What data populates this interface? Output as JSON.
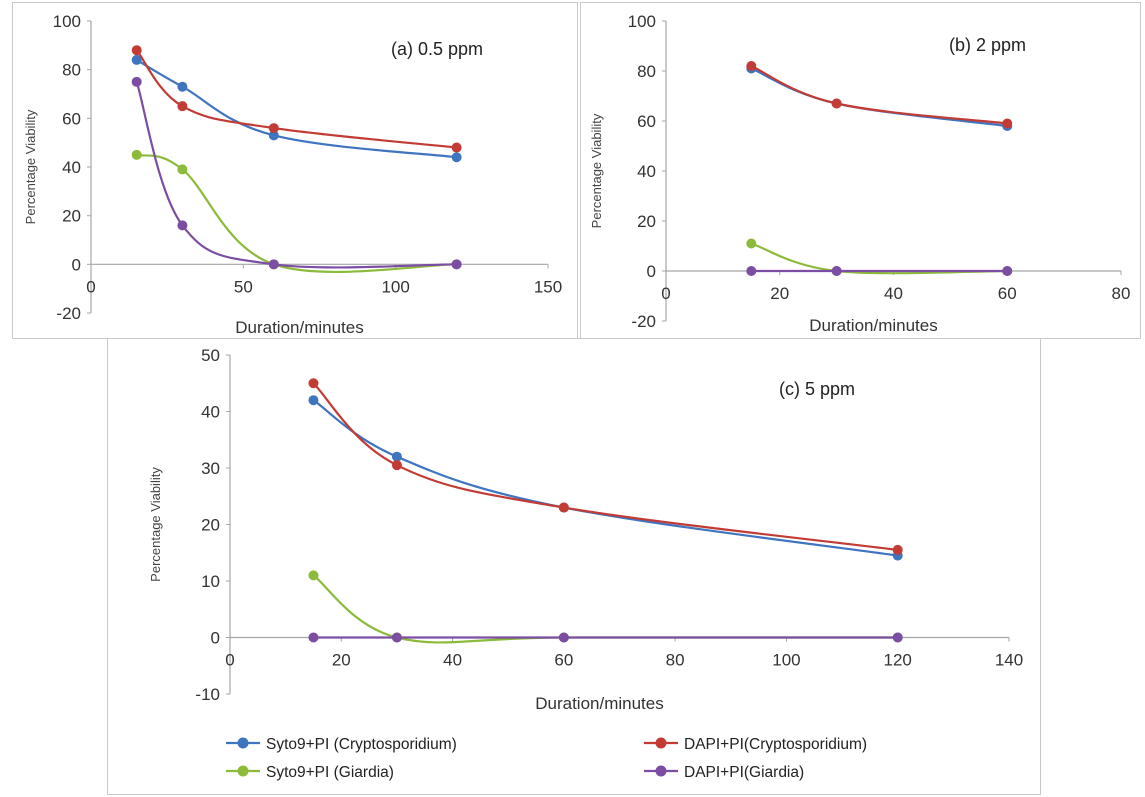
{
  "colors": {
    "syto9_crypto": "#3f74c0",
    "dapi_crypto": "#c23b35",
    "syto9_giardia": "#8cba3a",
    "dapi_giardia": "#7b4da3",
    "axis": "#a6a6a6"
  },
  "legend": [
    {
      "label": "Syto9+PI (Cryptosporidium)",
      "color_key": "syto9_crypto"
    },
    {
      "label": "DAPI+PI(Cryptosporidium)",
      "color_key": "dapi_crypto"
    },
    {
      "label": "Syto9+PI (Giardia)",
      "color_key": "syto9_giardia"
    },
    {
      "label": "DAPI+PI(Giardia)",
      "color_key": "dapi_giardia"
    }
  ],
  "chart_data": [
    {
      "type": "line",
      "title": "(a) 0.5 ppm",
      "xlabel": "Duration/minutes",
      "ylabel": "Percentage Viability",
      "xlim": [
        0,
        150
      ],
      "ylim": [
        -20,
        100
      ],
      "xticks": [
        0,
        50,
        100,
        150
      ],
      "yticks": [
        -20,
        0,
        20,
        40,
        60,
        80,
        100
      ],
      "grid": false,
      "x": [
        15,
        30,
        60,
        120
      ],
      "series": [
        {
          "name": "Syto9+PI (Cryptosporidium)",
          "values": [
            84,
            73,
            53,
            44
          ]
        },
        {
          "name": "DAPI+PI(Cryptosporidium)",
          "values": [
            88,
            65,
            56,
            48
          ]
        },
        {
          "name": "Syto9+PI (Giardia)",
          "values": [
            45,
            39,
            0,
            0
          ]
        },
        {
          "name": "DAPI+PI(Giardia)",
          "values": [
            75,
            16,
            0,
            0
          ]
        }
      ]
    },
    {
      "type": "line",
      "title": "(b) 2 ppm",
      "xlabel": "Duration/minutes",
      "ylabel": "Percentage Viability",
      "xlim": [
        0,
        80
      ],
      "ylim": [
        -20,
        100
      ],
      "xticks": [
        0,
        20,
        40,
        60,
        80
      ],
      "yticks": [
        -20,
        0,
        20,
        40,
        60,
        80,
        100
      ],
      "grid": false,
      "x": [
        15,
        30,
        60
      ],
      "series": [
        {
          "name": "Syto9+PI (Cryptosporidium)",
          "values": [
            81,
            67,
            58
          ]
        },
        {
          "name": "DAPI+PI(Cryptosporidium)",
          "values": [
            82,
            67,
            59
          ]
        },
        {
          "name": "Syto9+PI (Giardia)",
          "values": [
            11,
            0,
            0
          ]
        },
        {
          "name": "DAPI+PI(Giardia)",
          "values": [
            0,
            0,
            0
          ]
        }
      ]
    },
    {
      "type": "line",
      "title": "(c) 5 ppm",
      "xlabel": "Duration/minutes",
      "ylabel": "Percentage Viability",
      "xlim": [
        0,
        140
      ],
      "ylim": [
        -10,
        50
      ],
      "xticks": [
        0,
        20,
        40,
        60,
        80,
        100,
        120,
        140
      ],
      "yticks": [
        -10,
        0,
        10,
        20,
        30,
        40,
        50
      ],
      "grid": false,
      "legend_position": "bottom",
      "x": [
        15,
        30,
        60,
        120
      ],
      "series": [
        {
          "name": "Syto9+PI (Cryptosporidium)",
          "values": [
            42,
            32,
            23,
            14.5
          ]
        },
        {
          "name": "DAPI+PI(Cryptosporidium)",
          "values": [
            45,
            30.5,
            23,
            15.5
          ]
        },
        {
          "name": "Syto9+PI (Giardia)",
          "values": [
            11,
            0,
            0,
            0
          ]
        },
        {
          "name": "DAPI+PI(Giardia)",
          "values": [
            0,
            0,
            0,
            0
          ]
        }
      ]
    }
  ]
}
